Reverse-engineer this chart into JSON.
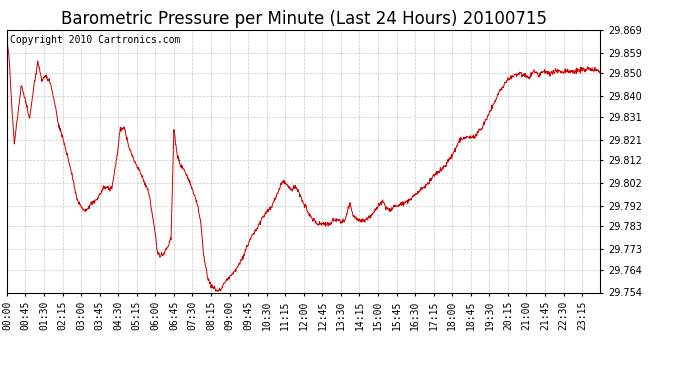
{
  "title": "Barometric Pressure per Minute (Last 24 Hours) 20100715",
  "copyright_text": "Copyright 2010 Cartronics.com",
  "line_color": "#cc0000",
  "background_color": "#ffffff",
  "grid_color": "#c8c8c8",
  "ylim": [
    29.754,
    29.869
  ],
  "yticks": [
    29.754,
    29.764,
    29.773,
    29.783,
    29.792,
    29.802,
    29.812,
    29.821,
    29.831,
    29.84,
    29.85,
    29.859,
    29.869
  ],
  "xtick_labels": [
    "00:00",
    "00:45",
    "01:30",
    "02:15",
    "03:00",
    "03:45",
    "04:30",
    "05:15",
    "06:00",
    "06:45",
    "07:30",
    "08:15",
    "09:00",
    "09:45",
    "10:30",
    "11:15",
    "12:00",
    "12:45",
    "13:30",
    "14:15",
    "15:00",
    "15:45",
    "16:30",
    "17:15",
    "18:00",
    "18:45",
    "19:30",
    "20:15",
    "21:00",
    "21:45",
    "22:30",
    "23:15"
  ],
  "title_fontsize": 12,
  "tick_fontsize": 7,
  "copyright_fontsize": 7
}
